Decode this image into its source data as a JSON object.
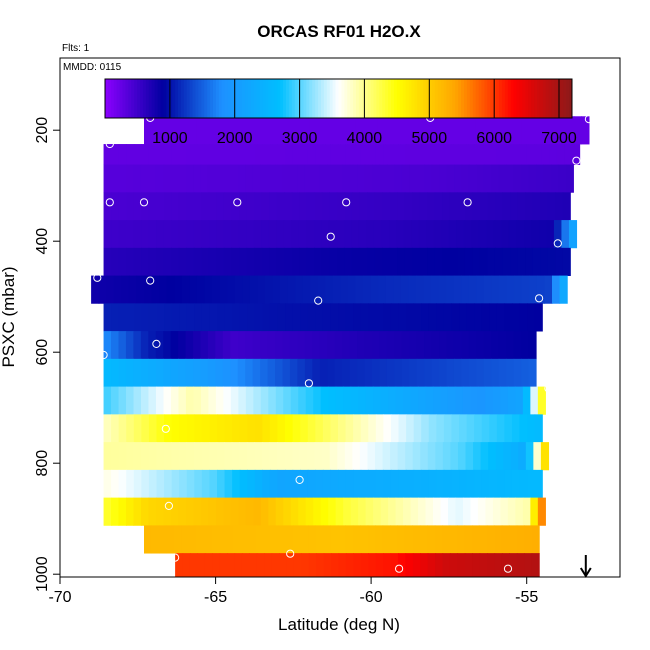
{
  "chart_data": {
    "type": "heatmap",
    "title": "ORCAS RF01 H2O.X",
    "annotations": [
      "Flts: 1",
      "MMDD: 0115"
    ],
    "xlabel": "Latitude (deg N)",
    "ylabel": "PSXC (mbar)",
    "xlim": [
      -70,
      -52
    ],
    "ylim": [
      1005,
      70
    ],
    "y_reversed": true,
    "x_ticks": [
      -70,
      -65,
      -60,
      -55
    ],
    "y_ticks": [
      200,
      400,
      600,
      800,
      1000
    ],
    "colorbar": {
      "range": [
        0,
        7200
      ],
      "ticks": [
        1000,
        2000,
        3000,
        4000,
        5000,
        6000,
        7000
      ],
      "colors": [
        "#8B00FF",
        "#0000A0",
        "#1E90FF",
        "#00BFFF",
        "#FFFFFF",
        "#FFFF00",
        "#FFA500",
        "#FF0000",
        "#8B1A1A"
      ]
    },
    "layers": [
      {
        "p_top": 175,
        "p_bot": 225,
        "lat_start": -67.3,
        "lat_end": -53.0,
        "profile": [
          [
            0,
            250
          ],
          [
            1,
            250
          ]
        ]
      },
      {
        "p_top": 225,
        "p_bot": 262,
        "lat_start": -68.6,
        "lat_end": -53.3,
        "profile": [
          [
            0,
            270
          ],
          [
            1,
            300
          ]
        ]
      },
      {
        "p_top": 262,
        "p_bot": 312,
        "lat_start": -68.6,
        "lat_end": -53.5,
        "profile": [
          [
            0,
            340
          ],
          [
            0.7,
            420
          ],
          [
            1,
            520
          ]
        ]
      },
      {
        "p_top": 312,
        "p_bot": 362,
        "lat_start": -68.6,
        "lat_end": -53.6,
        "profile": [
          [
            0,
            420
          ],
          [
            0.6,
            560
          ],
          [
            1,
            700
          ]
        ]
      },
      {
        "p_top": 362,
        "p_bot": 412,
        "lat_start": -68.6,
        "lat_end": -53.4,
        "profile": [
          [
            0,
            500
          ],
          [
            0.6,
            640
          ],
          [
            0.95,
            800
          ],
          [
            1,
            2400
          ]
        ]
      },
      {
        "p_top": 412,
        "p_bot": 462,
        "lat_start": -68.6,
        "lat_end": -53.6,
        "profile": [
          [
            0,
            650
          ],
          [
            0.5,
            850
          ],
          [
            1,
            950
          ]
        ]
      },
      {
        "p_top": 462,
        "p_bot": 512,
        "lat_start": -69.0,
        "lat_end": -53.7,
        "profile": [
          [
            0,
            800
          ],
          [
            0.6,
            1150
          ],
          [
            0.96,
            1300
          ],
          [
            1,
            2500
          ]
        ]
      },
      {
        "p_top": 512,
        "p_bot": 562,
        "lat_start": -68.6,
        "lat_end": -54.5,
        "profile": [
          [
            0,
            1100
          ],
          [
            0.4,
            1000
          ],
          [
            1,
            900
          ]
        ]
      },
      {
        "p_top": 562,
        "p_bot": 612,
        "lat_start": -68.6,
        "lat_end": -54.7,
        "profile": [
          [
            0,
            1800
          ],
          [
            0.1,
            1100
          ],
          [
            0.3,
            500
          ],
          [
            0.6,
            700
          ],
          [
            1,
            900
          ]
        ]
      },
      {
        "p_top": 612,
        "p_bot": 662,
        "lat_start": -68.6,
        "lat_end": -54.7,
        "profile": [
          [
            0,
            2600
          ],
          [
            0.25,
            2000
          ],
          [
            0.5,
            1100
          ],
          [
            1,
            1500
          ]
        ]
      },
      {
        "p_top": 662,
        "p_bot": 712,
        "lat_start": -68.6,
        "lat_end": -54.4,
        "profile": [
          [
            0,
            2900
          ],
          [
            0.2,
            3900
          ],
          [
            0.5,
            2700
          ],
          [
            0.85,
            1900
          ],
          [
            0.95,
            2200
          ],
          [
            1,
            4800
          ]
        ]
      },
      {
        "p_top": 712,
        "p_bot": 762,
        "lat_start": -68.6,
        "lat_end": -54.5,
        "profile": [
          [
            0,
            3800
          ],
          [
            0.15,
            4500
          ],
          [
            0.35,
            4800
          ],
          [
            0.55,
            4000
          ],
          [
            0.75,
            3200
          ],
          [
            1,
            2600
          ]
        ]
      },
      {
        "p_top": 762,
        "p_bot": 812,
        "lat_start": -68.6,
        "lat_end": -54.3,
        "profile": [
          [
            0,
            3950
          ],
          [
            0.5,
            3800
          ],
          [
            0.8,
            3000
          ],
          [
            0.95,
            2300
          ],
          [
            1,
            5300
          ]
        ]
      },
      {
        "p_top": 812,
        "p_bot": 862,
        "lat_start": -68.6,
        "lat_end": -54.5,
        "profile": [
          [
            0,
            3700
          ],
          [
            0.25,
            3000
          ],
          [
            0.4,
            2200
          ],
          [
            0.7,
            2400
          ],
          [
            1,
            2600
          ]
        ]
      },
      {
        "p_top": 862,
        "p_bot": 912,
        "lat_start": -68.6,
        "lat_end": -54.4,
        "profile": [
          [
            0,
            4300
          ],
          [
            0.1,
            4900
          ],
          [
            0.35,
            5200
          ],
          [
            0.55,
            4300
          ],
          [
            0.8,
            3500
          ],
          [
            0.96,
            3900
          ],
          [
            1,
            6000
          ]
        ]
      },
      {
        "p_top": 912,
        "p_bot": 962,
        "lat_start": -67.3,
        "lat_end": -54.6,
        "profile": [
          [
            0,
            5200
          ],
          [
            0.5,
            5100
          ],
          [
            1,
            5300
          ]
        ]
      },
      {
        "p_top": 962,
        "p_bot": 1012,
        "lat_start": -66.3,
        "lat_end": -54.6,
        "profile": [
          [
            0,
            6000
          ],
          [
            0.35,
            6000
          ],
          [
            0.6,
            6200
          ],
          [
            0.75,
            6700
          ],
          [
            1,
            6900
          ]
        ]
      }
    ],
    "markers": [
      [
        -67.1,
        178
      ],
      [
        -58.1,
        178
      ],
      [
        -53.0,
        180
      ],
      [
        -68.4,
        225
      ],
      [
        -53.4,
        255
      ],
      [
        -68.4,
        330
      ],
      [
        -67.3,
        330
      ],
      [
        -64.3,
        330
      ],
      [
        -60.8,
        330
      ],
      [
        -56.9,
        330
      ],
      [
        -61.3,
        392
      ],
      [
        -54.0,
        404
      ],
      [
        -68.8,
        466
      ],
      [
        -67.1,
        471
      ],
      [
        -61.7,
        507
      ],
      [
        -54.6,
        503
      ],
      [
        -66.9,
        585
      ],
      [
        -68.6,
        605
      ],
      [
        -62.0,
        656
      ],
      [
        -54.3,
        665
      ],
      [
        -66.6,
        738
      ],
      [
        -54.1,
        813
      ],
      [
        -62.3,
        830
      ],
      [
        -66.5,
        877
      ],
      [
        -66.3,
        970
      ],
      [
        -62.6,
        963
      ],
      [
        -59.1,
        990
      ],
      [
        -55.6,
        990
      ]
    ],
    "arrow": {
      "lat": -53.1,
      "direction": "down"
    }
  }
}
